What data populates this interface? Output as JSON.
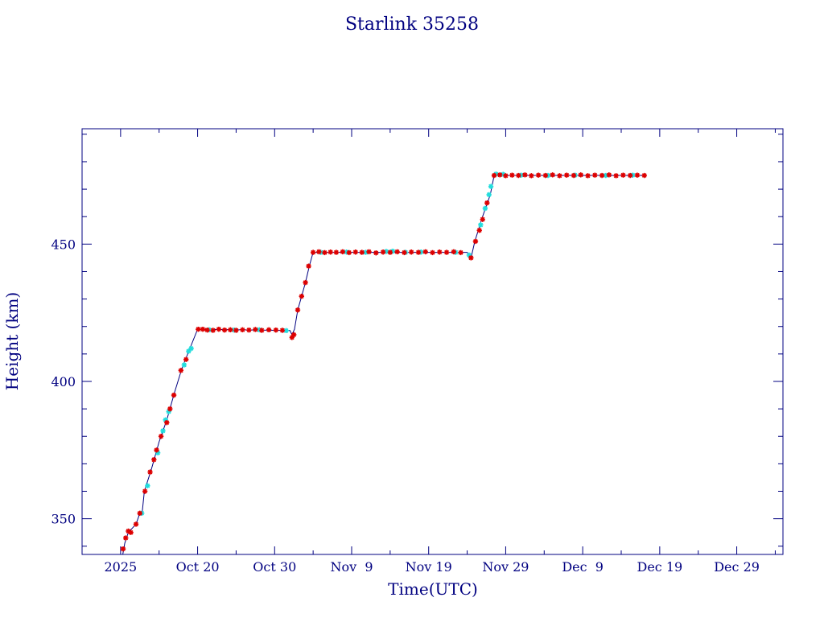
{
  "chart_data": {
    "type": "scatter",
    "title": "Starlink 35258",
    "xlabel": "Time(UTC)",
    "ylabel": "Height (km)",
    "xlim": [
      "2025-10-05",
      "2026-01-04"
    ],
    "ylim": [
      337,
      492
    ],
    "x_tick_labels": [
      {
        "date": "2025-10-10",
        "label": "2025"
      },
      {
        "date": "2025-10-20",
        "label": "Oct 20"
      },
      {
        "date": "2025-10-30",
        "label": "Oct 30"
      },
      {
        "date": "2025-11-09",
        "label": "Nov  9"
      },
      {
        "date": "2025-11-19",
        "label": "Nov 19"
      },
      {
        "date": "2025-11-29",
        "label": "Nov 29"
      },
      {
        "date": "2025-12-09",
        "label": "Dec  9"
      },
      {
        "date": "2025-12-19",
        "label": "Dec 19"
      },
      {
        "date": "2025-12-29",
        "label": "Dec 29"
      }
    ],
    "y_ticks": [
      350,
      400,
      450
    ],
    "colors": {
      "axis": "#000080",
      "line": "#000080",
      "marker_red": "#dd0000",
      "marker_cyan": "#22dddd"
    },
    "series": [
      {
        "marker": "star",
        "line": [
          [
            "2025-10-10 07:00",
            337
          ],
          [
            "2025-10-10 13:00",
            341
          ],
          [
            "2025-10-11 00:00",
            345
          ],
          [
            "2025-10-12 00:00",
            348
          ],
          [
            "2025-10-12 12:00",
            352
          ],
          [
            "2025-10-12 19:00",
            352
          ],
          [
            "2025-10-13 02:00",
            360
          ],
          [
            "2025-10-14 00:00",
            368
          ],
          [
            "2025-10-15 00:00",
            378
          ],
          [
            "2025-10-16 00:00",
            386
          ],
          [
            "2025-10-17 00:00",
            396
          ],
          [
            "2025-10-18 00:00",
            405
          ],
          [
            "2025-10-19 00:00",
            412
          ],
          [
            "2025-10-20 00:00",
            419
          ],
          [
            "2025-11-01 00:00",
            418.5
          ],
          [
            "2025-11-01 06:00",
            417
          ],
          [
            "2025-11-01 14:00",
            419
          ],
          [
            "2025-11-02 00:00",
            426
          ],
          [
            "2025-11-03 00:00",
            436
          ],
          [
            "2025-11-03 12:00",
            442
          ],
          [
            "2025-11-04 00:00",
            447
          ],
          [
            "2025-11-24 00:00",
            447
          ],
          [
            "2025-11-24 12:00",
            445
          ],
          [
            "2025-11-25 00:00",
            451
          ],
          [
            "2025-11-26 00:00",
            460
          ],
          [
            "2025-11-27 00:00",
            468
          ],
          [
            "2025-11-27 12:00",
            475
          ],
          [
            "2025-12-17 06:00",
            475
          ]
        ],
        "red_points": [
          [
            "2025-10-10 08:00",
            339
          ],
          [
            "2025-10-10 16:00",
            343
          ],
          [
            "2025-10-11 00:00",
            345.5
          ],
          [
            "2025-10-11 08:00",
            345
          ],
          [
            "2025-10-12 00:00",
            348
          ],
          [
            "2025-10-12 12:00",
            352
          ],
          [
            "2025-10-13 04:00",
            360
          ],
          [
            "2025-10-13 20:00",
            367
          ],
          [
            "2025-10-14 08:00",
            371.5
          ],
          [
            "2025-10-14 16:00",
            375
          ],
          [
            "2025-10-15 06:00",
            380
          ],
          [
            "2025-10-16 00:00",
            385
          ],
          [
            "2025-10-16 10:00",
            390
          ],
          [
            "2025-10-16 22:00",
            395
          ],
          [
            "2025-10-17 20:00",
            404
          ],
          [
            "2025-10-18 12:00",
            408
          ],
          [
            "2025-10-20 02:00",
            419
          ],
          [
            "2025-10-20 16:00",
            419
          ],
          [
            "2025-10-21 06:00",
            418.7
          ],
          [
            "2025-10-22 00:00",
            418.6
          ],
          [
            "2025-10-22 18:00",
            419
          ],
          [
            "2025-10-23 12:00",
            418.7
          ],
          [
            "2025-10-24 06:00",
            418.8
          ],
          [
            "2025-10-25 00:00",
            418.6
          ],
          [
            "2025-10-25 20:00",
            418.8
          ],
          [
            "2025-10-26 16:00",
            418.7
          ],
          [
            "2025-10-27 12:00",
            418.9
          ],
          [
            "2025-10-28 08:00",
            418.6
          ],
          [
            "2025-10-29 06:00",
            418.8
          ],
          [
            "2025-10-30 04:00",
            418.7
          ],
          [
            "2025-10-31 00:00",
            418.6
          ],
          [
            "2025-11-01 06:00",
            416
          ],
          [
            "2025-11-01 12:00",
            417
          ],
          [
            "2025-11-02 00:00",
            426
          ],
          [
            "2025-11-02 12:00",
            431
          ],
          [
            "2025-11-03 00:00",
            436
          ],
          [
            "2025-11-03 10:00",
            442
          ],
          [
            "2025-11-04 00:00",
            447
          ],
          [
            "2025-11-04 18:00",
            447.2
          ],
          [
            "2025-11-05 12:00",
            446.9
          ],
          [
            "2025-11-06 06:00",
            447.1
          ],
          [
            "2025-11-07 00:00",
            447
          ],
          [
            "2025-11-07 20:00",
            447.2
          ],
          [
            "2025-11-08 16:00",
            446.9
          ],
          [
            "2025-11-09 12:00",
            447.1
          ],
          [
            "2025-11-10 08:00",
            447
          ],
          [
            "2025-11-11 06:00",
            447.2
          ],
          [
            "2025-11-12 04:00",
            446.8
          ],
          [
            "2025-11-13 02:00",
            447.1
          ],
          [
            "2025-11-14 00:00",
            447
          ],
          [
            "2025-11-14 22:00",
            447.2
          ],
          [
            "2025-11-15 20:00",
            446.9
          ],
          [
            "2025-11-16 18:00",
            447.1
          ],
          [
            "2025-11-17 16:00",
            447
          ],
          [
            "2025-11-18 14:00",
            447.2
          ],
          [
            "2025-11-19 12:00",
            446.9
          ],
          [
            "2025-11-20 10:00",
            447.1
          ],
          [
            "2025-11-21 08:00",
            447
          ],
          [
            "2025-11-22 06:00",
            447.2
          ],
          [
            "2025-11-23 04:00",
            446.9
          ],
          [
            "2025-11-24 12:00",
            445
          ],
          [
            "2025-11-25 02:00",
            451
          ],
          [
            "2025-11-25 14:00",
            455
          ],
          [
            "2025-11-26 00:00",
            459
          ],
          [
            "2025-11-26 14:00",
            465
          ],
          [
            "2025-11-27 12:00",
            475
          ],
          [
            "2025-11-28 06:00",
            475.2
          ],
          [
            "2025-11-29 00:00",
            474.9
          ],
          [
            "2025-11-29 20:00",
            475.1
          ],
          [
            "2025-11-30 16:00",
            475
          ],
          [
            "2025-12-01 12:00",
            475.2
          ],
          [
            "2025-12-02 08:00",
            474.9
          ],
          [
            "2025-12-03 06:00",
            475.1
          ],
          [
            "2025-12-04 04:00",
            475
          ],
          [
            "2025-12-05 02:00",
            475.2
          ],
          [
            "2025-12-06 00:00",
            474.9
          ],
          [
            "2025-12-06 22:00",
            475.1
          ],
          [
            "2025-12-07 20:00",
            475
          ],
          [
            "2025-12-08 18:00",
            475.2
          ],
          [
            "2025-12-09 16:00",
            474.9
          ],
          [
            "2025-12-10 14:00",
            475.1
          ],
          [
            "2025-12-11 12:00",
            475
          ],
          [
            "2025-12-12 10:00",
            475.2
          ],
          [
            "2025-12-13 08:00",
            474.9
          ],
          [
            "2025-12-14 06:00",
            475.1
          ],
          [
            "2025-12-15 04:00",
            475
          ],
          [
            "2025-12-16 02:00",
            475.1
          ],
          [
            "2025-12-17 00:00",
            475
          ]
        ],
        "cyan_points": [
          [
            "2025-10-12 18:00",
            352
          ],
          [
            "2025-10-13 12:00",
            362
          ],
          [
            "2025-10-14 20:00",
            374
          ],
          [
            "2025-10-15 12:00",
            382
          ],
          [
            "2025-10-15 20:00",
            386
          ],
          [
            "2025-10-16 06:00",
            389
          ],
          [
            "2025-10-18 06:00",
            406
          ],
          [
            "2025-10-18 20:00",
            411
          ],
          [
            "2025-10-19 04:00",
            412
          ],
          [
            "2025-10-21 12:00",
            418.8
          ],
          [
            "2025-10-24 18:00",
            418.7
          ],
          [
            "2025-10-28 00:00",
            418.8
          ],
          [
            "2025-10-31 12:00",
            418.5
          ],
          [
            "2025-11-05 00:00",
            447
          ],
          [
            "2025-11-08 08:00",
            447.1
          ],
          [
            "2025-11-10 20:00",
            447
          ],
          [
            "2025-11-13 12:00",
            447.3
          ],
          [
            "2025-11-14 08:00",
            447.4
          ],
          [
            "2025-11-16 00:00",
            447
          ],
          [
            "2025-11-18 00:00",
            447.1
          ],
          [
            "2025-11-22 12:00",
            447
          ],
          [
            "2025-11-24 06:00",
            446
          ],
          [
            "2025-11-25 18:00",
            457
          ],
          [
            "2025-11-26 08:00",
            463
          ],
          [
            "2025-11-26 20:00",
            468
          ],
          [
            "2025-11-27 02:00",
            471
          ],
          [
            "2025-11-27 18:00",
            475.5
          ],
          [
            "2025-11-28 16:00",
            475.4
          ],
          [
            "2025-12-01 00:00",
            475.1
          ],
          [
            "2025-12-04 12:00",
            475
          ],
          [
            "2025-12-08 00:00",
            475.1
          ],
          [
            "2025-12-12 00:00",
            475
          ],
          [
            "2025-12-15 12:00",
            475.1
          ]
        ]
      }
    ]
  }
}
